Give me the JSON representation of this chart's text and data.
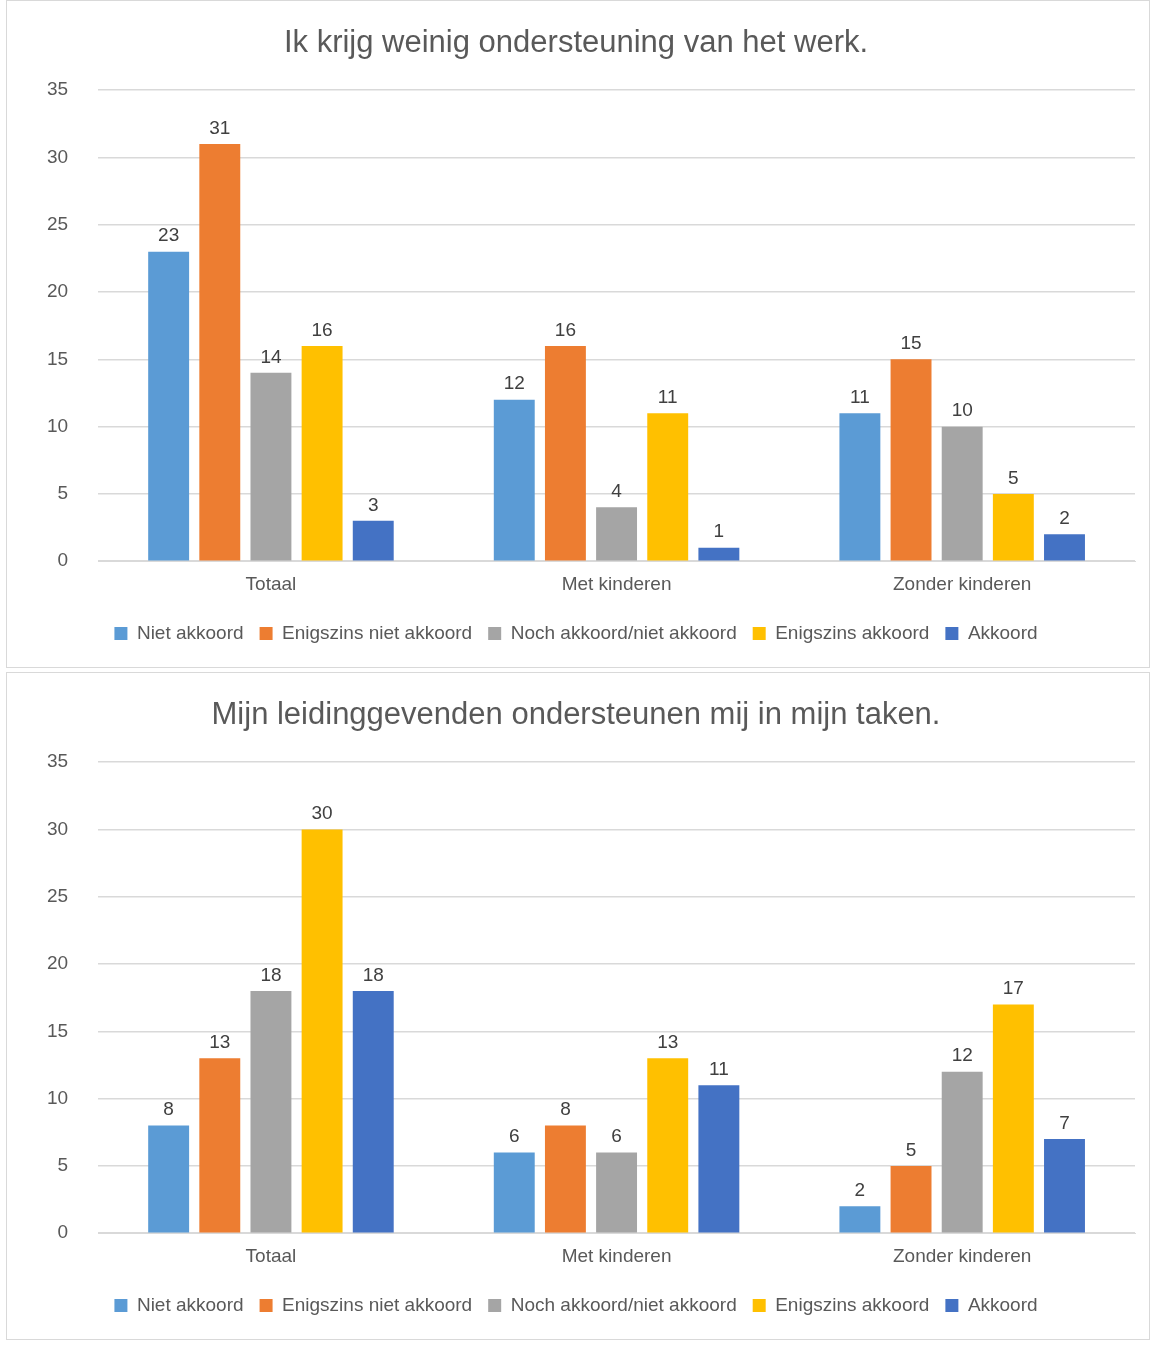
{
  "chart_data": [
    {
      "type": "bar",
      "title": "Ik krijg weinig ondersteuning van het werk.",
      "categories": [
        "Totaal",
        "Met kinderen",
        "Zonder kinderen"
      ],
      "series": [
        {
          "name": "Niet akkoord",
          "color": "#5b9bd5",
          "values": [
            23,
            12,
            11
          ]
        },
        {
          "name": "Enigszins niet akkoord",
          "color": "#ed7d31",
          "values": [
            31,
            16,
            15
          ]
        },
        {
          "name": "Noch akkoord/niet akkoord",
          "color": "#a5a5a5",
          "values": [
            14,
            4,
            10
          ]
        },
        {
          "name": "Enigszins akkoord",
          "color": "#ffc000",
          "values": [
            16,
            11,
            5
          ]
        },
        {
          "name": "Akkoord",
          "color": "#4472c4",
          "values": [
            3,
            1,
            2
          ]
        }
      ],
      "ylim": [
        0,
        35
      ],
      "yticks": [
        0,
        5,
        10,
        15,
        20,
        25,
        30,
        35
      ],
      "grid": "y",
      "legend": "bottom",
      "data_labels": true
    },
    {
      "type": "bar",
      "title": "Mijn leidinggevenden ondersteunen mij in mijn taken.",
      "categories": [
        "Totaal",
        "Met kinderen",
        "Zonder kinderen"
      ],
      "series": [
        {
          "name": "Niet akkoord",
          "color": "#5b9bd5",
          "values": [
            8,
            6,
            2
          ]
        },
        {
          "name": "Enigszins niet akkoord",
          "color": "#ed7d31",
          "values": [
            13,
            8,
            5
          ]
        },
        {
          "name": "Noch akkoord/niet akkoord",
          "color": "#a5a5a5",
          "values": [
            18,
            6,
            12
          ]
        },
        {
          "name": "Enigszins akkoord",
          "color": "#ffc000",
          "values": [
            30,
            13,
            17
          ]
        },
        {
          "name": "Akkoord",
          "color": "#4472c4",
          "values": [
            18,
            11,
            7
          ]
        }
      ],
      "ylim": [
        0,
        35
      ],
      "yticks": [
        0,
        5,
        10,
        15,
        20,
        25,
        30,
        35
      ],
      "grid": "y",
      "legend": "bottom",
      "data_labels": true
    }
  ]
}
